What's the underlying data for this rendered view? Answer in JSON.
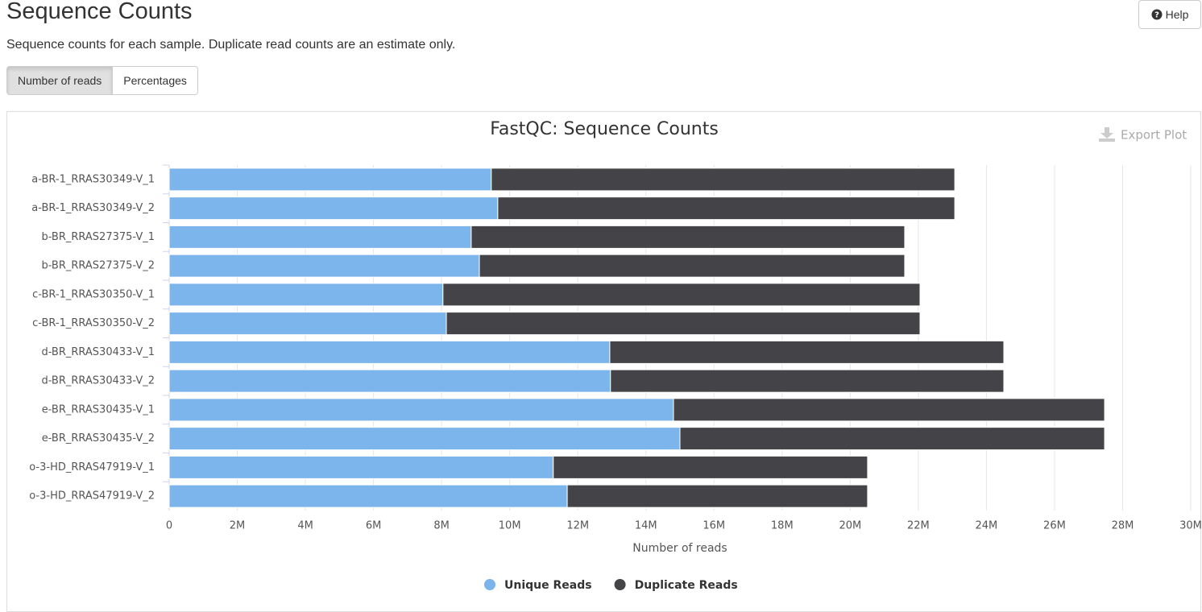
{
  "page": {
    "title": "Sequence Counts",
    "description": "Sequence counts for each sample. Duplicate read counts are an estimate only.",
    "buttons": [
      "Number of reads",
      "Percentages"
    ],
    "help": "Help",
    "export": "Export Plot"
  },
  "chart_data": {
    "type": "stacked-barh",
    "title": "FastQC: Sequence Counts",
    "xlabel": "Number of reads",
    "categories": [
      "a-BR-1_RRAS30349-V_1",
      "a-BR-1_RRAS30349-V_2",
      "b-BR_RRAS27375-V_1",
      "b-BR_RRAS27375-V_2",
      "c-BR-1_RRAS30350-V_1",
      "c-BR-1_RRAS30350-V_2",
      "d-BR_RRAS30433-V_1",
      "d-BR_RRAS30433-V_2",
      "e-BR_RRAS30435-V_1",
      "e-BR_RRAS30435-V_2",
      "o-3-HD_RRAS47919-V_1",
      "o-3-HD_RRAS47919-V_2"
    ],
    "series": [
      {
        "name": "Unique Reads",
        "color": "#7cb5ec",
        "values": [
          9460000,
          9650000,
          8870000,
          9110000,
          8040000,
          8140000,
          12940000,
          12960000,
          14810000,
          15000000,
          11280000,
          11690000
        ]
      },
      {
        "name": "Duplicate Reads",
        "color": "#434348",
        "values": [
          13610000,
          13420000,
          12730000,
          12490000,
          14010000,
          13910000,
          11570000,
          11550000,
          12660000,
          12470000,
          9230000,
          8820000
        ]
      }
    ],
    "xlim": [
      0,
      30000000
    ],
    "xticks": [
      0,
      {
        "value": 2000000,
        "label": "2M"
      },
      {
        "value": 4000000,
        "label": "4M"
      },
      {
        "value": 6000000,
        "label": "6M"
      },
      {
        "value": 8000000,
        "label": "8M"
      },
      {
        "value": 10000000,
        "label": "10M"
      },
      {
        "value": 12000000,
        "label": "12M"
      },
      {
        "value": 14000000,
        "label": "14M"
      },
      {
        "value": 16000000,
        "label": "16M"
      },
      {
        "value": 18000000,
        "label": "18M"
      },
      {
        "value": 20000000,
        "label": "20M"
      },
      {
        "value": 22000000,
        "label": "22M"
      },
      {
        "value": 24000000,
        "label": "24M"
      },
      {
        "value": 26000000,
        "label": "26M"
      },
      {
        "value": 28000000,
        "label": "28M"
      },
      {
        "value": 30000000,
        "label": "30M"
      }
    ],
    "grid": true,
    "legend": "bottom"
  }
}
